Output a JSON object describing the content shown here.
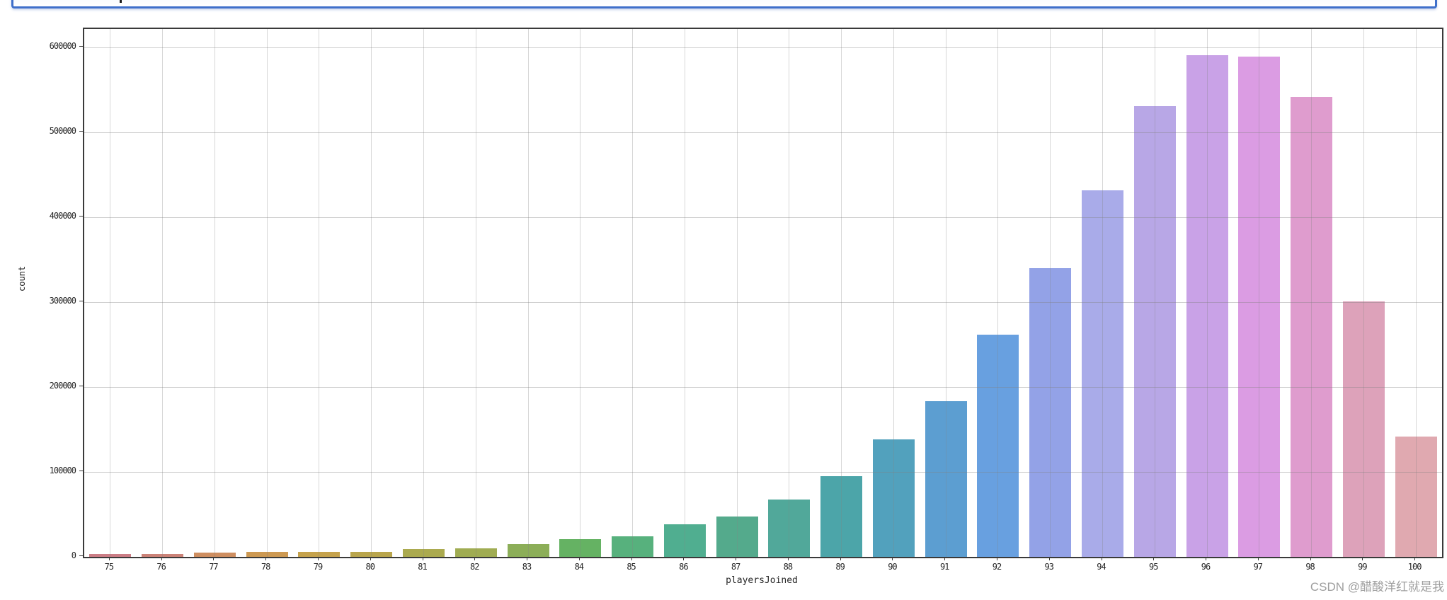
{
  "watermark": {
    "text": "CSDN @醋酸洋红就是我",
    "color": "#9e9e9e"
  },
  "input_box": {
    "border_color": "#3e6fca"
  },
  "chart_data": {
    "type": "bar",
    "title": "",
    "xlabel": "playersJoined",
    "ylabel": "count",
    "categories": [
      "75",
      "76",
      "77",
      "78",
      "79",
      "80",
      "81",
      "82",
      "83",
      "84",
      "85",
      "86",
      "87",
      "88",
      "89",
      "90",
      "91",
      "92",
      "93",
      "94",
      "95",
      "96",
      "97",
      "98",
      "99",
      "100"
    ],
    "values": [
      3000,
      3000,
      5000,
      6000,
      5500,
      6000,
      9500,
      10000,
      15000,
      21000,
      24000,
      38000,
      47500,
      67500,
      95000,
      138000,
      183000,
      262000,
      340000,
      432000,
      531000,
      591000,
      589000,
      542000,
      301000,
      142000
    ],
    "bar_colors": [
      "#cb7d85",
      "#cb8277",
      "#ce8e60",
      "#cd9952",
      "#c5a24c",
      "#b9a54c",
      "#abaa4f",
      "#a0ac52",
      "#8cae58",
      "#65b263",
      "#57b17d",
      "#50ae90",
      "#54aa8c",
      "#51a89a",
      "#4ca5a9",
      "#52a1bd",
      "#5c9ed1",
      "#68a0e0",
      "#93a2e7",
      "#a9abe9",
      "#b8a7e6",
      "#c9a2e7",
      "#db9ce3",
      "#df9cce",
      "#dda2ba",
      "#e0a9b0"
    ],
    "y_ticks": [
      0,
      100000,
      200000,
      300000,
      400000,
      500000,
      600000
    ],
    "y_tick_labels": [
      "0",
      "100000",
      "200000",
      "300000",
      "400000",
      "500000",
      "600000"
    ],
    "ylim": [
      0,
      621667
    ],
    "grid": true,
    "grid_color": "#c9c9c9",
    "axis_color": "#3a3a3a",
    "legend_position": "none"
  }
}
